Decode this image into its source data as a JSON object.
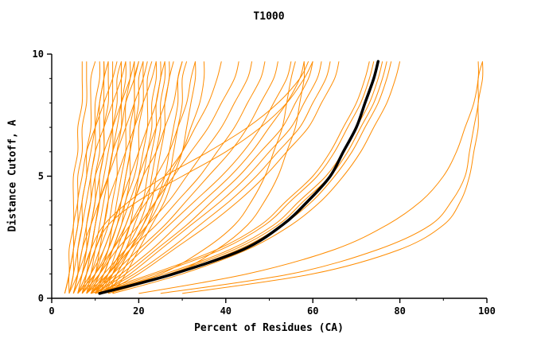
{
  "chart_data": {
    "type": "line",
    "title": "T1000",
    "xlabel": "Percent of Residues (CA)",
    "ylabel": "Distance Cutoff, A",
    "xlim": [
      0,
      100
    ],
    "ylim": [
      0,
      10
    ],
    "x_ticks": [
      0,
      20,
      40,
      60,
      80,
      100
    ],
    "y_ticks": [
      0,
      5,
      10
    ],
    "x_minor_step": 10,
    "y_minor_step": 1,
    "grid": false,
    "legend": "none",
    "colors": {
      "ensemble": "#ff8c00",
      "highlight": "#000000",
      "frame": "#000000",
      "background": "#ffffff"
    },
    "y_levels": [
      0.2,
      1,
      2,
      3,
      4,
      5,
      6,
      7,
      8,
      9,
      9.7
    ],
    "black_curve": [
      11,
      28,
      44,
      53,
      59,
      64,
      67,
      70,
      72,
      74,
      75
    ],
    "orange_curves": [
      [
        3,
        4,
        4,
        5,
        5,
        5,
        6,
        6,
        7,
        7,
        7
      ],
      [
        4,
        4,
        5,
        5,
        6,
        6,
        7,
        7,
        8,
        8,
        8
      ],
      [
        4,
        5,
        6,
        7,
        7,
        8,
        8,
        9,
        9,
        9,
        10
      ],
      [
        5,
        6,
        7,
        8,
        9,
        9,
        10,
        10,
        10,
        11,
        11
      ],
      [
        5,
        7,
        9,
        10,
        11,
        11,
        12,
        12,
        12,
        12,
        12
      ],
      [
        4,
        5,
        5,
        6,
        6,
        7,
        8,
        10,
        12,
        14,
        15
      ],
      [
        6,
        7,
        8,
        9,
        10,
        11,
        12,
        12,
        13,
        13,
        13
      ],
      [
        6,
        8,
        10,
        12,
        13,
        13,
        14,
        14,
        14,
        14,
        14
      ],
      [
        5,
        6,
        6,
        7,
        8,
        9,
        10,
        12,
        14,
        16,
        17
      ],
      [
        7,
        8,
        9,
        10,
        11,
        12,
        13,
        14,
        15,
        15,
        16
      ],
      [
        7,
        9,
        11,
        13,
        14,
        15,
        15,
        16,
        16,
        16,
        16
      ],
      [
        6,
        7,
        8,
        8,
        9,
        10,
        12,
        14,
        16,
        18,
        19
      ],
      [
        8,
        10,
        12,
        14,
        15,
        16,
        17,
        17,
        17,
        18,
        18
      ],
      [
        8,
        9,
        10,
        11,
        12,
        13,
        14,
        16,
        17,
        19,
        20
      ],
      [
        9,
        11,
        13,
        15,
        17,
        18,
        18,
        19,
        19,
        19,
        19
      ],
      [
        7,
        8,
        9,
        10,
        11,
        13,
        15,
        17,
        19,
        21,
        22
      ],
      [
        9,
        12,
        14,
        16,
        17,
        19,
        20,
        20,
        21,
        21,
        21
      ],
      [
        8,
        10,
        11,
        12,
        13,
        15,
        17,
        19,
        21,
        23,
        24
      ],
      [
        10,
        13,
        16,
        18,
        19,
        20,
        21,
        22,
        22,
        22,
        23
      ],
      [
        9,
        11,
        13,
        14,
        16,
        18,
        20,
        22,
        24,
        25,
        26
      ],
      [
        11,
        14,
        17,
        19,
        21,
        22,
        23,
        24,
        24,
        25,
        25
      ],
      [
        10,
        12,
        14,
        16,
        18,
        20,
        22,
        24,
        26,
        27,
        28
      ],
      [
        12,
        15,
        18,
        21,
        23,
        24,
        25,
        26,
        26,
        27,
        27
      ],
      [
        11,
        13,
        15,
        17,
        19,
        21,
        24,
        26,
        28,
        29,
        30
      ],
      [
        13,
        16,
        19,
        22,
        24,
        26,
        27,
        28,
        29,
        29,
        30
      ],
      [
        12,
        14,
        16,
        18,
        21,
        24,
        27,
        29,
        31,
        32,
        33
      ],
      [
        14,
        17,
        20,
        23,
        26,
        28,
        30,
        31,
        32,
        33,
        33
      ],
      [
        13,
        15,
        18,
        21,
        24,
        27,
        30,
        32,
        34,
        35,
        35
      ],
      [
        3,
        4,
        5,
        6,
        7,
        8,
        9,
        10,
        11,
        12,
        13
      ],
      [
        4,
        6,
        8,
        9,
        10,
        10,
        11,
        11,
        11,
        12,
        12
      ],
      [
        5,
        6,
        7,
        9,
        11,
        13,
        14,
        15,
        16,
        17,
        17
      ],
      [
        6,
        9,
        12,
        14,
        16,
        17,
        18,
        18,
        19,
        19,
        20
      ],
      [
        7,
        10,
        13,
        15,
        16,
        17,
        18,
        19,
        20,
        20,
        21
      ],
      [
        8,
        11,
        14,
        17,
        19,
        21,
        22,
        23,
        23,
        24,
        24
      ],
      [
        9,
        13,
        17,
        20,
        22,
        23,
        24,
        25,
        25,
        26,
        26
      ],
      [
        10,
        14,
        18,
        22,
        25,
        27,
        28,
        29,
        30,
        30,
        31
      ],
      [
        6,
        10,
        14,
        18,
        22,
        26,
        30,
        33,
        36,
        38,
        39
      ],
      [
        7,
        11,
        15,
        20,
        24,
        28,
        32,
        36,
        39,
        42,
        43
      ],
      [
        8,
        12,
        17,
        22,
        27,
        31,
        35,
        39,
        42,
        45,
        46
      ],
      [
        8,
        13,
        18,
        24,
        29,
        34,
        38,
        42,
        45,
        48,
        49
      ],
      [
        9,
        14,
        20,
        26,
        31,
        36,
        41,
        45,
        48,
        51,
        52
      ],
      [
        9,
        15,
        21,
        27,
        33,
        39,
        44,
        48,
        51,
        54,
        55
      ],
      [
        10,
        16,
        23,
        29,
        35,
        41,
        46,
        50,
        54,
        57,
        58
      ],
      [
        10,
        17,
        24,
        31,
        37,
        43,
        48,
        53,
        56,
        59,
        60
      ],
      [
        11,
        18,
        25,
        32,
        39,
        45,
        50,
        55,
        58,
        61,
        62
      ],
      [
        11,
        19,
        27,
        34,
        41,
        47,
        52,
        57,
        60,
        63,
        64
      ],
      [
        12,
        20,
        28,
        36,
        43,
        49,
        54,
        59,
        62,
        65,
        66
      ],
      [
        6,
        8,
        10,
        13,
        20,
        30,
        40,
        48,
        54,
        58,
        60
      ],
      [
        5,
        7,
        9,
        12,
        18,
        26,
        36,
        45,
        52,
        57,
        59
      ],
      [
        10,
        25,
        35,
        42,
        46,
        49,
        51,
        53,
        54,
        55,
        56
      ],
      [
        12,
        28,
        38,
        45,
        49,
        52,
        54,
        56,
        57,
        58,
        58
      ],
      [
        9,
        23,
        38,
        48,
        54,
        60,
        64,
        67,
        70,
        72,
        73
      ],
      [
        10,
        24,
        39,
        49,
        55,
        61,
        65,
        68,
        71,
        73,
        74
      ],
      [
        11,
        26,
        41,
        51,
        57,
        63,
        67,
        70,
        73,
        75,
        76
      ],
      [
        12,
        27,
        42,
        52,
        58,
        64,
        68,
        71,
        74,
        76,
        77
      ],
      [
        13,
        28,
        43,
        53,
        60,
        65,
        69,
        72,
        75,
        77,
        78
      ],
      [
        14,
        30,
        45,
        55,
        62,
        67,
        71,
        74,
        77,
        79,
        80
      ],
      [
        25,
        55,
        75,
        87,
        92,
        95,
        96,
        97,
        98,
        98,
        99
      ],
      [
        30,
        60,
        80,
        90,
        94,
        96,
        97,
        98,
        98,
        99,
        99
      ],
      [
        20,
        45,
        65,
        77,
        85,
        90,
        93,
        95,
        97,
        98,
        98
      ]
    ]
  }
}
